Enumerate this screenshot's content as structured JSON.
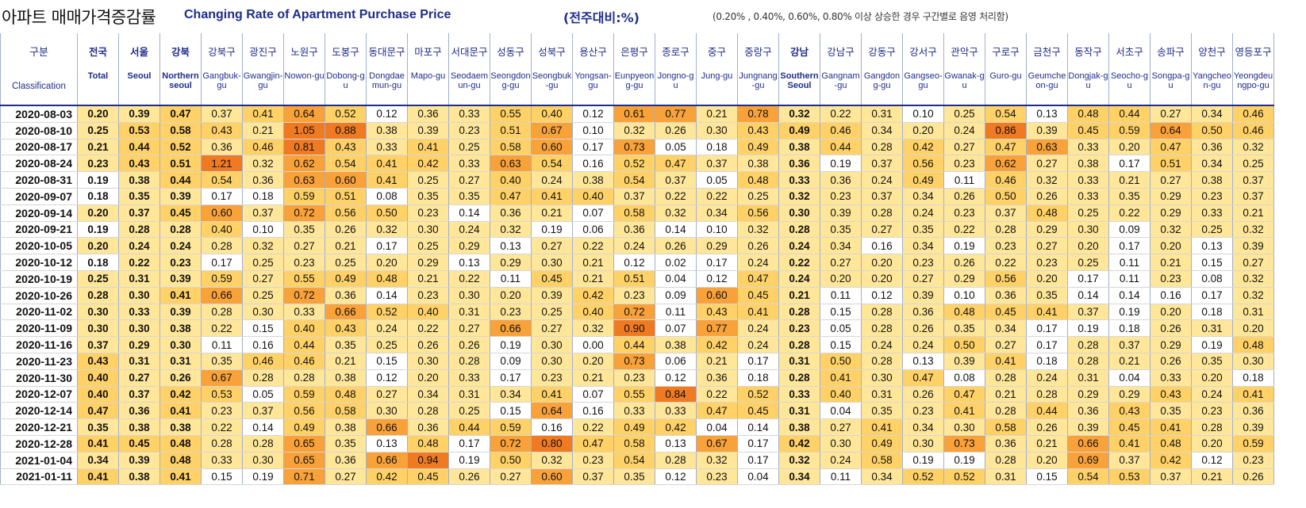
{
  "title": {
    "korean": "아파트 매매가격증감률",
    "english": "Changing Rate of Apartment Purchase Price",
    "unit": "(전주대비:%)",
    "note": "(0.20% , 0.40%, 0.60%, 0.80% 이상 상승한 경우 구간별로 음영 처리함)"
  },
  "header": {
    "classification_ko": "구분",
    "classification_en": "Classification",
    "columns": [
      {
        "ko": "전국",
        "en": "Total",
        "bold": true
      },
      {
        "ko": "서울",
        "en": "Seoul",
        "bold": true
      },
      {
        "ko": "강북",
        "en": "Northern seoul",
        "bold": true
      },
      {
        "ko": "강북구",
        "en": "Gangbuk-gu",
        "bold": false
      },
      {
        "ko": "광진구",
        "en": "Gwangjin-gu",
        "bold": false
      },
      {
        "ko": "노원구",
        "en": "Nowon-gu",
        "bold": false
      },
      {
        "ko": "도봉구",
        "en": "Dobong-gu",
        "bold": false
      },
      {
        "ko": "동대문구",
        "en": "Dongdaemun-gu",
        "bold": false
      },
      {
        "ko": "마포구",
        "en": "Mapo-gu",
        "bold": false
      },
      {
        "ko": "서대문구",
        "en": "Seodaemun-gu",
        "bold": false
      },
      {
        "ko": "성동구",
        "en": "Seongdong-gu",
        "bold": false
      },
      {
        "ko": "성북구",
        "en": "Seongbuk-gu",
        "bold": false
      },
      {
        "ko": "용산구",
        "en": "Yongsan-gu",
        "bold": false
      },
      {
        "ko": "은평구",
        "en": "Eunpyeong-gu",
        "bold": false
      },
      {
        "ko": "종로구",
        "en": "Jongno-gu",
        "bold": false
      },
      {
        "ko": "중구",
        "en": "Jung-gu",
        "bold": false
      },
      {
        "ko": "중랑구",
        "en": "Jungnang-gu",
        "bold": false
      },
      {
        "ko": "강남",
        "en": "Southern Seoul",
        "bold": true
      },
      {
        "ko": "강남구",
        "en": "Gangnam-gu",
        "bold": false
      },
      {
        "ko": "강동구",
        "en": "Gangdong-gu",
        "bold": false
      },
      {
        "ko": "강서구",
        "en": "Gangseo-gu",
        "bold": false
      },
      {
        "ko": "관악구",
        "en": "Gwanak-gu",
        "bold": false
      },
      {
        "ko": "구로구",
        "en": "Guro-gu",
        "bold": false
      },
      {
        "ko": "금천구",
        "en": "Geumcheon-gu",
        "bold": false
      },
      {
        "ko": "동작구",
        "en": "Dongjak-gu",
        "bold": false
      },
      {
        "ko": "서초구",
        "en": "Seocho-gu",
        "bold": false
      },
      {
        "ko": "송파구",
        "en": "Songpa-gu",
        "bold": false
      },
      {
        "ko": "양천구",
        "en": "Yangcheon-gu",
        "bold": false
      },
      {
        "ko": "영등포구",
        "en": "Yeongdeungpo-gu",
        "bold": false
      }
    ]
  },
  "shading_colors": {
    "below_020": "#ffffff",
    "from_020": "#ffe699",
    "from_040": "#ffd166",
    "from_060": "#f9a23a",
    "from_080": "#f07a22"
  },
  "rows": [
    {
      "date": "2020-08-03",
      "values": [
        "0.20",
        "0.39",
        "0.47",
        "0.37",
        "0.41",
        "0.64",
        "0.52",
        "0.12",
        "0.36",
        "0.33",
        "0.55",
        "0.40",
        "0.12",
        "0.61",
        "0.77",
        "0.21",
        "0.78",
        "0.32",
        "0.22",
        "0.31",
        "0.10",
        "0.25",
        "0.54",
        "0.13",
        "0.48",
        "0.44",
        "0.27",
        "0.34",
        "0.46"
      ]
    },
    {
      "date": "2020-08-10",
      "values": [
        "0.25",
        "0.53",
        "0.58",
        "0.43",
        "0.21",
        "1.05",
        "0.88",
        "0.38",
        "0.39",
        "0.23",
        "0.51",
        "0.67",
        "0.10",
        "0.32",
        "0.26",
        "0.30",
        "0.43",
        "0.49",
        "0.46",
        "0.34",
        "0.20",
        "0.24",
        "0.86",
        "0.39",
        "0.45",
        "0.59",
        "0.64",
        "0.50",
        "0.46"
      ]
    },
    {
      "date": "2020-08-17",
      "values": [
        "0.21",
        "0.44",
        "0.52",
        "0.36",
        "0.46",
        "0.81",
        "0.43",
        "0.33",
        "0.41",
        "0.25",
        "0.58",
        "0.60",
        "0.17",
        "0.73",
        "0.05",
        "0.18",
        "0.49",
        "0.38",
        "0.44",
        "0.28",
        "0.42",
        "0.27",
        "0.47",
        "0.63",
        "0.33",
        "0.20",
        "0.47",
        "0.36",
        "0.32"
      ]
    },
    {
      "date": "2020-08-24",
      "values": [
        "0.23",
        "0.43",
        "0.51",
        "1.21",
        "0.32",
        "0.62",
        "0.54",
        "0.41",
        "0.42",
        "0.33",
        "0.63",
        "0.54",
        "0.16",
        "0.52",
        "0.47",
        "0.37",
        "0.38",
        "0.36",
        "0.19",
        "0.37",
        "0.56",
        "0.23",
        "0.62",
        "0.27",
        "0.38",
        "0.17",
        "0.51",
        "0.34",
        "0.25"
      ]
    },
    {
      "date": "2020-08-31",
      "values": [
        "0.19",
        "0.38",
        "0.44",
        "0.54",
        "0.36",
        "0.63",
        "0.60",
        "0.41",
        "0.25",
        "0.27",
        "0.40",
        "0.24",
        "0.38",
        "0.54",
        "0.37",
        "0.05",
        "0.48",
        "0.33",
        "0.36",
        "0.24",
        "0.49",
        "0.11",
        "0.46",
        "0.32",
        "0.33",
        "0.21",
        "0.27",
        "0.38",
        "0.37"
      ]
    },
    {
      "date": "2020-09-07",
      "values": [
        "0.18",
        "0.35",
        "0.39",
        "0.17",
        "0.18",
        "0.59",
        "0.51",
        "0.08",
        "0.35",
        "0.35",
        "0.47",
        "0.41",
        "0.40",
        "0.37",
        "0.22",
        "0.22",
        "0.25",
        "0.32",
        "0.23",
        "0.37",
        "0.34",
        "0.26",
        "0.50",
        "0.26",
        "0.33",
        "0.35",
        "0.29",
        "0.23",
        "0.37"
      ]
    },
    {
      "date": "2020-09-14",
      "values": [
        "0.20",
        "0.37",
        "0.45",
        "0.60",
        "0.37",
        "0.72",
        "0.56",
        "0.50",
        "0.23",
        "0.14",
        "0.36",
        "0.21",
        "0.07",
        "0.58",
        "0.32",
        "0.34",
        "0.56",
        "0.30",
        "0.39",
        "0.28",
        "0.24",
        "0.23",
        "0.37",
        "0.48",
        "0.25",
        "0.22",
        "0.29",
        "0.33",
        "0.21"
      ]
    },
    {
      "date": "2020-09-21",
      "values": [
        "0.19",
        "0.28",
        "0.28",
        "0.40",
        "0.10",
        "0.35",
        "0.26",
        "0.32",
        "0.30",
        "0.24",
        "0.32",
        "0.19",
        "0.06",
        "0.36",
        "0.14",
        "0.10",
        "0.32",
        "0.28",
        "0.35",
        "0.27",
        "0.35",
        "0.22",
        "0.28",
        "0.29",
        "0.30",
        "0.09",
        "0.32",
        "0.25",
        "0.32"
      ]
    },
    {
      "date": "2020-10-05",
      "values": [
        "0.20",
        "0.24",
        "0.24",
        "0.28",
        "0.32",
        "0.27",
        "0.21",
        "0.17",
        "0.25",
        "0.29",
        "0.13",
        "0.27",
        "0.22",
        "0.24",
        "0.26",
        "0.29",
        "0.26",
        "0.24",
        "0.34",
        "0.16",
        "0.34",
        "0.19",
        "0.23",
        "0.27",
        "0.20",
        "0.17",
        "0.20",
        "0.13",
        "0.39"
      ]
    },
    {
      "date": "2020-10-12",
      "values": [
        "0.18",
        "0.22",
        "0.23",
        "0.17",
        "0.25",
        "0.23",
        "0.25",
        "0.20",
        "0.29",
        "0.13",
        "0.29",
        "0.30",
        "0.21",
        "0.12",
        "0.02",
        "0.17",
        "0.24",
        "0.22",
        "0.27",
        "0.20",
        "0.23",
        "0.26",
        "0.22",
        "0.23",
        "0.25",
        "0.11",
        "0.21",
        "0.15",
        "0.27"
      ]
    },
    {
      "date": "2020-10-19",
      "values": [
        "0.25",
        "0.31",
        "0.39",
        "0.59",
        "0.27",
        "0.55",
        "0.49",
        "0.48",
        "0.21",
        "0.22",
        "0.11",
        "0.45",
        "0.21",
        "0.51",
        "0.04",
        "0.12",
        "0.47",
        "0.24",
        "0.20",
        "0.20",
        "0.27",
        "0.29",
        "0.56",
        "0.20",
        "0.17",
        "0.11",
        "0.23",
        "0.08",
        "0.32"
      ]
    },
    {
      "date": "2020-10-26",
      "values": [
        "0.28",
        "0.30",
        "0.41",
        "0.66",
        "0.25",
        "0.72",
        "0.36",
        "0.14",
        "0.23",
        "0.30",
        "0.20",
        "0.39",
        "0.42",
        "0.23",
        "0.09",
        "0.60",
        "0.45",
        "0.21",
        "0.11",
        "0.12",
        "0.39",
        "0.10",
        "0.36",
        "0.35",
        "0.14",
        "0.14",
        "0.16",
        "0.17",
        "0.32"
      ]
    },
    {
      "date": "2020-11-02",
      "values": [
        "0.30",
        "0.33",
        "0.39",
        "0.28",
        "0.30",
        "0.33",
        "0.66",
        "0.52",
        "0.40",
        "0.31",
        "0.23",
        "0.25",
        "0.40",
        "0.72",
        "0.11",
        "0.43",
        "0.41",
        "0.28",
        "0.15",
        "0.28",
        "0.36",
        "0.48",
        "0.45",
        "0.41",
        "0.37",
        "0.19",
        "0.20",
        "0.18",
        "0.31"
      ]
    },
    {
      "date": "2020-11-09",
      "values": [
        "0.30",
        "0.30",
        "0.38",
        "0.22",
        "0.15",
        "0.40",
        "0.43",
        "0.24",
        "0.22",
        "0.27",
        "0.66",
        "0.27",
        "0.32",
        "0.90",
        "0.07",
        "0.77",
        "0.24",
        "0.23",
        "0.05",
        "0.28",
        "0.26",
        "0.35",
        "0.34",
        "0.17",
        "0.19",
        "0.18",
        "0.26",
        "0.31",
        "0.20"
      ]
    },
    {
      "date": "2020-11-16",
      "values": [
        "0.37",
        "0.29",
        "0.30",
        "0.11",
        "0.16",
        "0.44",
        "0.35",
        "0.25",
        "0.26",
        "0.26",
        "0.19",
        "0.30",
        "0.00",
        "0.44",
        "0.38",
        "0.42",
        "0.24",
        "0.28",
        "0.15",
        "0.24",
        "0.24",
        "0.50",
        "0.27",
        "0.17",
        "0.28",
        "0.37",
        "0.29",
        "0.19",
        "0.48"
      ]
    },
    {
      "date": "2020-11-23",
      "values": [
        "0.43",
        "0.31",
        "0.31",
        "0.35",
        "0.46",
        "0.46",
        "0.21",
        "0.15",
        "0.30",
        "0.28",
        "0.09",
        "0.30",
        "0.20",
        "0.73",
        "0.06",
        "0.21",
        "0.17",
        "0.31",
        "0.50",
        "0.28",
        "0.13",
        "0.39",
        "0.41",
        "0.18",
        "0.28",
        "0.21",
        "0.26",
        "0.35",
        "0.30"
      ]
    },
    {
      "date": "2020-11-30",
      "values": [
        "0.40",
        "0.27",
        "0.26",
        "0.67",
        "0.28",
        "0.28",
        "0.38",
        "0.12",
        "0.20",
        "0.33",
        "0.17",
        "0.23",
        "0.21",
        "0.23",
        "0.12",
        "0.36",
        "0.18",
        "0.28",
        "0.41",
        "0.30",
        "0.47",
        "0.08",
        "0.28",
        "0.24",
        "0.31",
        "0.04",
        "0.33",
        "0.20",
        "0.18"
      ]
    },
    {
      "date": "2020-12-07",
      "values": [
        "0.40",
        "0.37",
        "0.42",
        "0.53",
        "0.05",
        "0.59",
        "0.48",
        "0.27",
        "0.34",
        "0.31",
        "0.34",
        "0.41",
        "0.07",
        "0.55",
        "0.84",
        "0.22",
        "0.52",
        "0.33",
        "0.40",
        "0.31",
        "0.26",
        "0.47",
        "0.21",
        "0.28",
        "0.29",
        "0.29",
        "0.43",
        "0.24",
        "0.41"
      ]
    },
    {
      "date": "2020-12-14",
      "values": [
        "0.47",
        "0.36",
        "0.41",
        "0.23",
        "0.37",
        "0.56",
        "0.58",
        "0.30",
        "0.28",
        "0.25",
        "0.15",
        "0.64",
        "0.16",
        "0.33",
        "0.33",
        "0.47",
        "0.45",
        "0.31",
        "0.04",
        "0.35",
        "0.23",
        "0.41",
        "0.28",
        "0.44",
        "0.36",
        "0.43",
        "0.35",
        "0.23",
        "0.36"
      ]
    },
    {
      "date": "2020-12-21",
      "values": [
        "0.35",
        "0.38",
        "0.38",
        "0.22",
        "0.14",
        "0.49",
        "0.38",
        "0.66",
        "0.36",
        "0.44",
        "0.59",
        "0.16",
        "0.22",
        "0.49",
        "0.42",
        "0.04",
        "0.14",
        "0.38",
        "0.27",
        "0.41",
        "0.34",
        "0.30",
        "0.58",
        "0.26",
        "0.39",
        "0.45",
        "0.41",
        "0.28",
        "0.39"
      ]
    },
    {
      "date": "2020-12-28",
      "values": [
        "0.41",
        "0.45",
        "0.48",
        "0.28",
        "0.28",
        "0.65",
        "0.35",
        "0.13",
        "0.48",
        "0.17",
        "0.72",
        "0.80",
        "0.47",
        "0.58",
        "0.13",
        "0.67",
        "0.17",
        "0.42",
        "0.30",
        "0.49",
        "0.30",
        "0.73",
        "0.36",
        "0.21",
        "0.66",
        "0.41",
        "0.48",
        "0.20",
        "0.59"
      ]
    },
    {
      "date": "2021-01-04",
      "values": [
        "0.34",
        "0.39",
        "0.48",
        "0.33",
        "0.30",
        "0.65",
        "0.36",
        "0.66",
        "0.94",
        "0.19",
        "0.50",
        "0.32",
        "0.23",
        "0.54",
        "0.28",
        "0.32",
        "0.17",
        "0.32",
        "0.24",
        "0.58",
        "0.19",
        "0.19",
        "0.28",
        "0.20",
        "0.69",
        "0.37",
        "0.42",
        "0.12",
        "0.23"
      ]
    },
    {
      "date": "2021-01-11",
      "values": [
        "0.41",
        "0.38",
        "0.41",
        "0.15",
        "0.19",
        "0.71",
        "0.27",
        "0.42",
        "0.45",
        "0.26",
        "0.27",
        "0.60",
        "0.37",
        "0.35",
        "0.12",
        "0.23",
        "0.04",
        "0.34",
        "0.11",
        "0.34",
        "0.52",
        "0.52",
        "0.31",
        "0.15",
        "0.54",
        "0.53",
        "0.37",
        "0.21",
        "0.26"
      ]
    }
  ]
}
